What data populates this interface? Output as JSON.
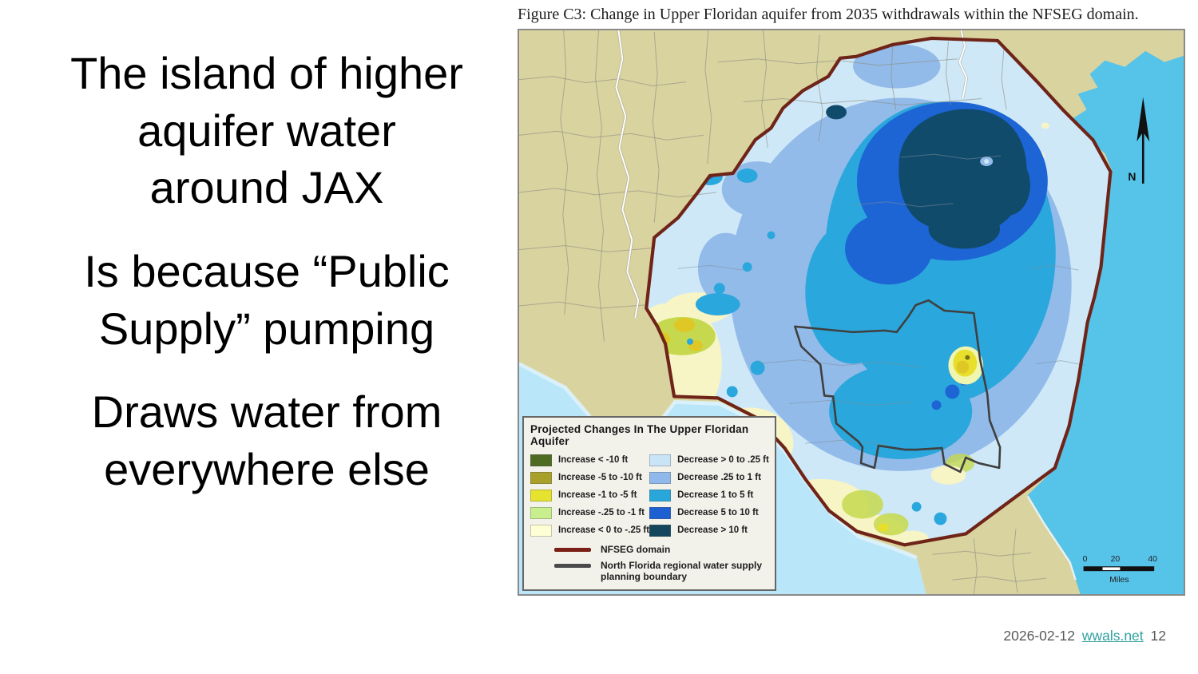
{
  "slide": {
    "headline": {
      "paragraphs": [
        [
          "The island of higher",
          "aquifer water",
          "around JAX"
        ],
        [
          "Is because “Public",
          "Supply” pumping"
        ],
        [
          "Draws water from",
          "everywhere else"
        ]
      ]
    },
    "footer": {
      "date": "2026-02-12",
      "link": "wwals.net",
      "page": "12"
    }
  },
  "figure": {
    "caption": "Figure C3: Change in Upper Floridan aquifer from 2035 withdrawals within the NFSEG domain.",
    "legend": {
      "title": "Projected Changes In The Upper Floridan Aquifer",
      "increase_items": [
        {
          "label": "Increase < -10 ft",
          "color": "#4e6b22"
        },
        {
          "label": "Increase -5 to -10 ft",
          "color": "#a8a029"
        },
        {
          "label": "Increase -1 to -5 ft",
          "color": "#e6e32e"
        },
        {
          "label": "Increase -.25 to -1 ft",
          "color": "#c9ee8e"
        },
        {
          "label": "Increase < 0 to -.25 ft",
          "color": "#ffffd6"
        }
      ],
      "decrease_items": [
        {
          "label": "Decrease > 0 to .25 ft",
          "color": "#c8e4f6"
        },
        {
          "label": "Decrease .25 to 1 ft",
          "color": "#8fb9ea"
        },
        {
          "label": "Decrease 1 to 5 ft",
          "color": "#29a6da"
        },
        {
          "label": "Decrease 5 to 10 ft",
          "color": "#1e5fd2"
        },
        {
          "label": "Decrease > 10 ft",
          "color": "#14465e"
        }
      ],
      "line_items": [
        {
          "label": "NFSEG domain",
          "color": "#7a1f16"
        },
        {
          "label": "North Florida regional water supply planning boundary",
          "color": "#4a4a4a"
        }
      ]
    },
    "north_label": "N",
    "scale": {
      "ticks": [
        "0",
        "20",
        "40"
      ],
      "unit": "Miles"
    },
    "map_colors": {
      "land": "#d9d3a0",
      "ocean": "#56c3e9",
      "gulf": "#b9e6f8",
      "pale": "#cfe8f8",
      "periwinkle": "#93bbe9",
      "cyan": "#2aa7dc",
      "blue": "#1d64d4",
      "navy": "#114b6b",
      "pale_yellow": "#f7f4c6",
      "light_green": "#c6d84e",
      "yellow": "#e8df2d",
      "mustard": "#dfc826",
      "nfseg_boundary": "#6f2418",
      "planning_boundary": "#3f3f3f"
    }
  }
}
